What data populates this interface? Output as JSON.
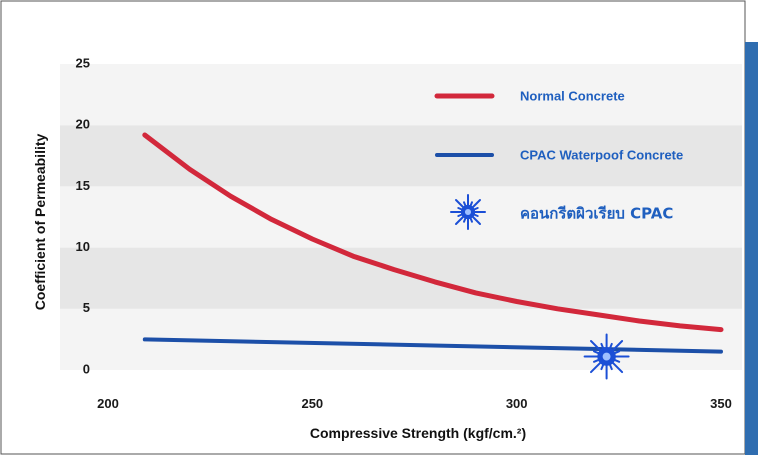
{
  "colors": {
    "frame_border": "#555555",
    "band_dark": "#e6e6e6",
    "band_light": "#f4f4f4",
    "right_strip": "#2f6db0",
    "normal_line": "#d2283b",
    "cpac_line": "#1c4fa8",
    "legend_text": "#1f5fbf",
    "star": "#1b4fd6"
  },
  "chart_data": {
    "type": "line",
    "title": "",
    "xlabel": "Compressive Strength (kgf/cm.²)",
    "ylabel": "Coefficient of Permeability",
    "xlim": [
      200,
      350
    ],
    "ylim": [
      0,
      25
    ],
    "x_ticks": [
      "200",
      "250",
      "300",
      "350"
    ],
    "y_ticks": [
      "0",
      "5",
      "10",
      "15",
      "20",
      "25"
    ],
    "grid": "horizontal bands",
    "legend_position": "top-right",
    "series": [
      {
        "name": "Normal Concrete",
        "color": "#d2283b",
        "x": [
          209,
          220,
          230,
          240,
          250,
          260,
          270,
          280,
          290,
          300,
          310,
          320,
          330,
          340,
          350
        ],
        "y": [
          19.2,
          16.4,
          14.2,
          12.3,
          10.7,
          9.3,
          8.2,
          7.2,
          6.3,
          5.6,
          5.0,
          4.5,
          4.0,
          3.6,
          3.3
        ]
      },
      {
        "name": "CPAC Waterpoof Concrete",
        "color": "#1c4fa8",
        "x": [
          209,
          350
        ],
        "y": [
          2.5,
          1.5
        ]
      }
    ],
    "markers": [
      {
        "name": "คอนกรีตผิวเรียบ CPAC",
        "symbol": "star-burst",
        "color": "#1b4fd6",
        "x": [
          322
        ],
        "y": [
          1.1
        ]
      }
    ]
  }
}
